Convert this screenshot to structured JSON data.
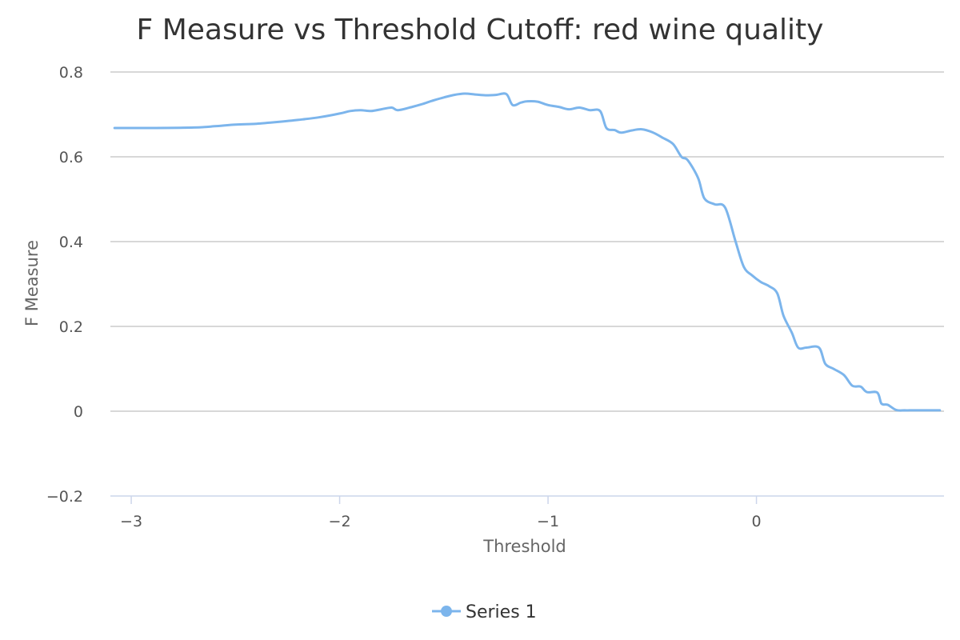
{
  "chart_data": {
    "type": "line",
    "title": "F Measure vs Threshold Cutoff: red wine quality",
    "xlabel": "Threshold",
    "ylabel": "F Measure",
    "xlim": [
      -3.1,
      0.9
    ],
    "ylim": [
      -0.2,
      0.8
    ],
    "x_ticks": [
      -3,
      -2,
      -1,
      0
    ],
    "x_tick_labels": [
      "−3",
      "−2",
      "−1",
      "0"
    ],
    "y_ticks": [
      0.8,
      0.6,
      0.4,
      0.2,
      0,
      -0.2
    ],
    "y_tick_labels": [
      "0.8",
      "0.6",
      "0.4",
      "0.2",
      "0",
      "−0.2"
    ],
    "grid": true,
    "legend_position": "bottom-center",
    "colors": {
      "series": "#7cb5ec",
      "grid": "#c0c0c0",
      "axis": "#ccd6eb"
    },
    "series": [
      {
        "name": "Series 1",
        "x": [
          -3.08,
          -2.9,
          -2.7,
          -2.6,
          -2.5,
          -2.4,
          -2.3,
          -2.2,
          -2.1,
          -2.0,
          -1.95,
          -1.9,
          -1.85,
          -1.8,
          -1.75,
          -1.72,
          -1.65,
          -1.6,
          -1.55,
          -1.5,
          -1.45,
          -1.4,
          -1.35,
          -1.3,
          -1.25,
          -1.2,
          -1.17,
          -1.13,
          -1.1,
          -1.05,
          -1.0,
          -0.95,
          -0.9,
          -0.85,
          -0.8,
          -0.75,
          -0.72,
          -0.68,
          -0.65,
          -0.6,
          -0.55,
          -0.5,
          -0.45,
          -0.4,
          -0.36,
          -0.33,
          -0.28,
          -0.25,
          -0.2,
          -0.15,
          -0.1,
          -0.06,
          -0.02,
          0.02,
          0.06,
          0.1,
          0.13,
          0.17,
          0.2,
          0.24,
          0.3,
          0.33,
          0.37,
          0.42,
          0.46,
          0.5,
          0.53,
          0.58,
          0.6,
          0.63,
          0.67,
          0.71,
          0.75,
          0.8,
          0.88
        ],
        "y": [
          0.668,
          0.668,
          0.669,
          0.672,
          0.676,
          0.678,
          0.682,
          0.687,
          0.693,
          0.702,
          0.708,
          0.71,
          0.708,
          0.712,
          0.716,
          0.71,
          0.718,
          0.725,
          0.733,
          0.74,
          0.746,
          0.749,
          0.747,
          0.745,
          0.746,
          0.748,
          0.722,
          0.728,
          0.731,
          0.73,
          0.722,
          0.718,
          0.712,
          0.716,
          0.71,
          0.708,
          0.668,
          0.663,
          0.657,
          0.662,
          0.665,
          0.658,
          0.645,
          0.63,
          0.6,
          0.592,
          0.55,
          0.502,
          0.488,
          0.48,
          0.4,
          0.34,
          0.32,
          0.305,
          0.295,
          0.278,
          0.225,
          0.185,
          0.15,
          0.15,
          0.15,
          0.112,
          0.1,
          0.085,
          0.06,
          0.058,
          0.045,
          0.044,
          0.018,
          0.015,
          0.003,
          0.002,
          0.002,
          0.002,
          0.002
        ]
      }
    ]
  }
}
